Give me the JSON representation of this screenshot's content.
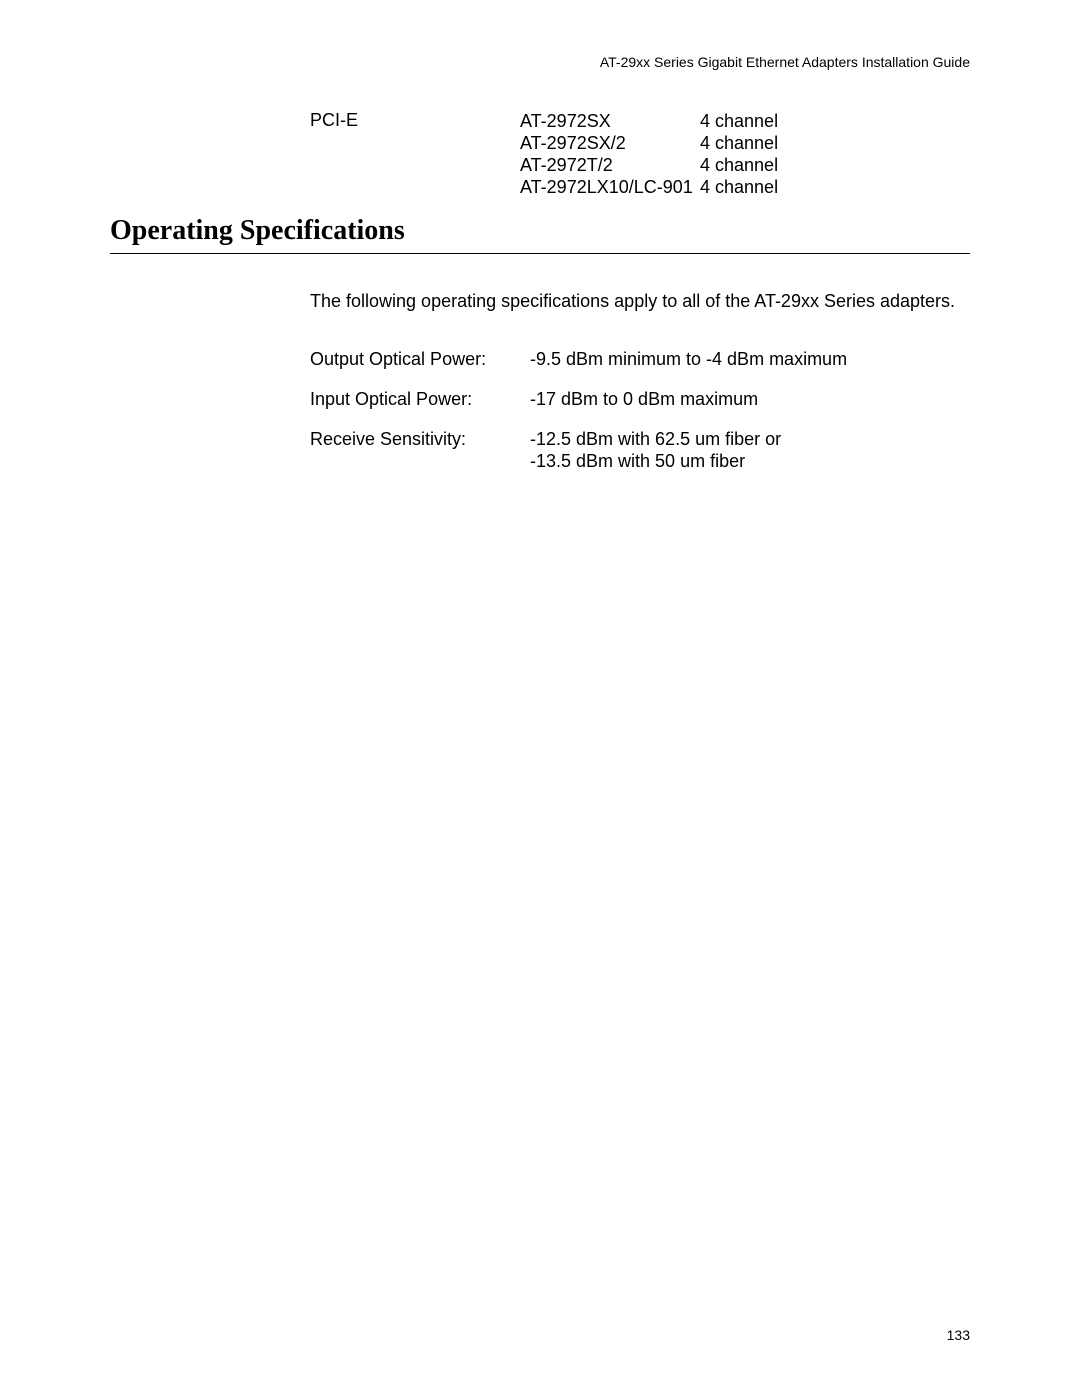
{
  "header": {
    "guide_title": "AT-29xx Series Gigabit Ethernet Adapters Installation Guide"
  },
  "pcie": {
    "label": "PCI-E",
    "rows": [
      {
        "model": "AT-2972SX",
        "channel": "4 channel"
      },
      {
        "model": "AT-2972SX/2",
        "channel": "4 channel"
      },
      {
        "model": "AT-2972T/2",
        "channel": "4 channel"
      },
      {
        "model": "AT-2972LX10/LC-901",
        "channel": "4 channel"
      }
    ]
  },
  "section": {
    "heading": "Operating Specifications",
    "intro": "The following operating specifications apply to all of the AT-29xx Series adapters."
  },
  "specs": [
    {
      "label": "Output Optical Power:",
      "value": "-9.5 dBm minimum to -4 dBm maximum"
    },
    {
      "label": "Input Optical Power:",
      "value": "-17 dBm to 0 dBm maximum"
    },
    {
      "label": "Receive Sensitivity:",
      "value": "-12.5 dBm with 62.5 um fiber or\n-13.5 dBm with 50 um fiber"
    }
  ],
  "page_number": "133"
}
